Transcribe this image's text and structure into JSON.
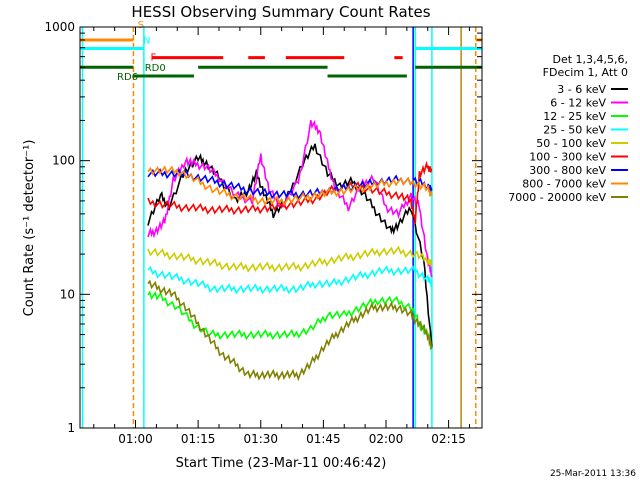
{
  "chart_data": {
    "type": "line",
    "title": "HESSI Observing Summary Count Rates",
    "xlabel": "Start Time (23-Mar-11 00:46:42)",
    "ylabel": "Count Rate (s⁻¹ detector⁻¹)",
    "yscale": "log",
    "ylim": [
      1,
      1000
    ],
    "xlim_minutes": [
      46.7,
      143.0
    ],
    "x_ticks": [
      {
        "m": 60,
        "label": "01:00"
      },
      {
        "m": 75,
        "label": "01:15"
      },
      {
        "m": 90,
        "label": "01:30"
      },
      {
        "m": 105,
        "label": "01:45"
      },
      {
        "m": 120,
        "label": "02:00"
      },
      {
        "m": 135,
        "label": "02:15"
      }
    ],
    "y_tick_labels": [
      "1",
      "10",
      "100",
      "1000"
    ],
    "timestamp": "25-Mar-2011 13:36",
    "legend_header": [
      "Det 1,3,4,5,6,",
      "FDecim 1, Att 0"
    ],
    "legend_placement": "right",
    "grid": false,
    "series": [
      {
        "name": "3 - 6 keV",
        "color": "#000000",
        "x": [
          63,
          66,
          68,
          72,
          75,
          77,
          80,
          84,
          87,
          89,
          91,
          93,
          96,
          100,
          103,
          106,
          109,
          112,
          115,
          118,
          121,
          123,
          126,
          129,
          131
        ],
        "y": [
          35,
          55,
          45,
          85,
          105,
          95,
          75,
          50,
          60,
          80,
          55,
          40,
          50,
          95,
          130,
          80,
          65,
          70,
          55,
          40,
          30,
          33,
          45,
          18,
          4
        ]
      },
      {
        "name": "6 - 12 keV",
        "color": "#ff00ff",
        "x": [
          63,
          65,
          67,
          69,
          72,
          74,
          77,
          80,
          84,
          88,
          90,
          92,
          95,
          99,
          102,
          104,
          106,
          108,
          111,
          114,
          117,
          120,
          123,
          126,
          128,
          130,
          131
        ],
        "y": [
          28,
          30,
          35,
          70,
          100,
          95,
          90,
          75,
          55,
          50,
          110,
          60,
          45,
          70,
          190,
          170,
          95,
          60,
          45,
          65,
          75,
          45,
          40,
          55,
          45,
          18,
          14
        ]
      },
      {
        "name": "12 - 25 keV",
        "color": "#00ff00",
        "x": [
          63,
          66,
          70,
          74,
          78,
          82,
          86,
          90,
          94,
          98,
          102,
          106,
          110,
          114,
          118,
          122,
          126,
          128,
          130,
          131
        ],
        "y": [
          10,
          9.5,
          8,
          6,
          5,
          5,
          5,
          5,
          5,
          5,
          5.5,
          7,
          7,
          8,
          9,
          9,
          8,
          6,
          5,
          4
        ]
      },
      {
        "name": "25 - 50 keV",
        "color": "#00ffff",
        "x": [
          63,
          67,
          71,
          75,
          79,
          83,
          87,
          91,
          95,
          99,
          103,
          107,
          111,
          115,
          119,
          123,
          127,
          130,
          131
        ],
        "y": [
          15,
          14,
          13,
          12,
          11,
          11,
          11,
          11,
          11,
          11,
          12,
          12,
          13,
          14,
          15,
          15,
          15,
          13,
          12
        ]
      },
      {
        "name": "50 - 100 keV",
        "color": "#cccc00",
        "x": [
          63,
          67,
          71,
          75,
          79,
          83,
          87,
          91,
          95,
          99,
          103,
          107,
          111,
          115,
          119,
          123,
          127,
          130,
          131
        ],
        "y": [
          21,
          20,
          19,
          18,
          17,
          16,
          16,
          16,
          16,
          16,
          17,
          18,
          19,
          20,
          21,
          21,
          20,
          18,
          17
        ]
      },
      {
        "name": "100 - 300 keV",
        "color": "#ff0000",
        "x": [
          63,
          67,
          71,
          75,
          79,
          83,
          87,
          91,
          95,
          99,
          103,
          107,
          111,
          115,
          119,
          123,
          126,
          127,
          128,
          130,
          131
        ],
        "y": [
          49,
          47,
          45,
          44,
          43,
          43,
          43,
          44,
          46,
          48,
          52,
          60,
          65,
          63,
          58,
          55,
          50,
          35,
          80,
          90,
          85
        ]
      },
      {
        "name": "300 - 800 keV",
        "color": "#0000ff",
        "x": [
          63,
          67,
          71,
          75,
          79,
          83,
          87,
          91,
          95,
          99,
          103,
          107,
          111,
          115,
          119,
          123,
          127,
          130,
          131
        ],
        "y": [
          80,
          80,
          80,
          75,
          70,
          65,
          60,
          57,
          56,
          56,
          57,
          60,
          63,
          66,
          70,
          72,
          70,
          65,
          60
        ]
      },
      {
        "name": "800 - 7000 keV",
        "color": "#ff8800",
        "x": [
          63,
          67,
          71,
          75,
          79,
          83,
          87,
          91,
          95,
          99,
          103,
          107,
          111,
          115,
          119,
          123,
          127,
          130,
          131
        ],
        "y": [
          85,
          85,
          82,
          70,
          60,
          55,
          52,
          50,
          50,
          52,
          55,
          58,
          60,
          63,
          67,
          70,
          68,
          62,
          55
        ]
      },
      {
        "name": "7000 - 20000 keV",
        "color": "#808000",
        "x": [
          63,
          66,
          69,
          72,
          75,
          78,
          81,
          84,
          87,
          90,
          93,
          96,
          99,
          102,
          105,
          108,
          111,
          114,
          117,
          120,
          123,
          126,
          128,
          130,
          131
        ],
        "y": [
          12,
          11,
          10,
          8,
          6,
          4.5,
          3.5,
          3,
          2.5,
          2.5,
          2.5,
          2.5,
          2.5,
          3,
          4,
          5,
          6,
          7,
          8,
          8,
          8,
          7,
          6,
          5,
          4
        ]
      }
    ],
    "vertical_markers": [
      {
        "m": 47.3,
        "color": "#00ffff",
        "style": "solid"
      },
      {
        "m": 59.5,
        "color": "#ff8800",
        "style": "dashed"
      },
      {
        "m": 62.0,
        "color": "#00ffff",
        "style": "solid"
      },
      {
        "m": 126.5,
        "color": "#0000ff",
        "style": "solid"
      },
      {
        "m": 127.0,
        "color": "#00ffff",
        "style": "solid"
      },
      {
        "m": 131.0,
        "color": "#00ffff",
        "style": "solid"
      },
      {
        "m": 138.0,
        "color": "#b8860b",
        "style": "solid"
      },
      {
        "m": 141.5,
        "color": "#ff8800",
        "style": "dashed"
      }
    ],
    "flag_bars": [
      {
        "label": "S",
        "label_color": "#ff8800",
        "color": "#ff8800",
        "y": 800,
        "segments": [
          [
            46.7,
            59.5
          ],
          [
            141.5,
            143.0
          ]
        ]
      },
      {
        "label": "N",
        "label_color": "#00ffff",
        "color": "#00ffff",
        "y": 690,
        "segments": [
          [
            46.7,
            62.0
          ],
          [
            127.0,
            143.0
          ]
        ]
      },
      {
        "label": "F",
        "label_color": "#ff0000",
        "color": "#ff0000",
        "y": 590,
        "segments": [
          [
            64,
            81
          ],
          [
            87,
            91
          ],
          [
            96,
            110
          ],
          [
            122,
            124
          ]
        ]
      },
      {
        "label": "RD0",
        "label_color": "#006400",
        "color": "#006400",
        "y": 500,
        "segments": [
          [
            46.7,
            59.5
          ],
          [
            75,
            106
          ],
          [
            127,
            143
          ]
        ]
      },
      {
        "label": "RD6",
        "label_color": "#006400",
        "color": "#006400",
        "y": 430,
        "segments": [
          [
            59.5,
            74
          ],
          [
            106,
            125
          ]
        ]
      }
    ]
  }
}
